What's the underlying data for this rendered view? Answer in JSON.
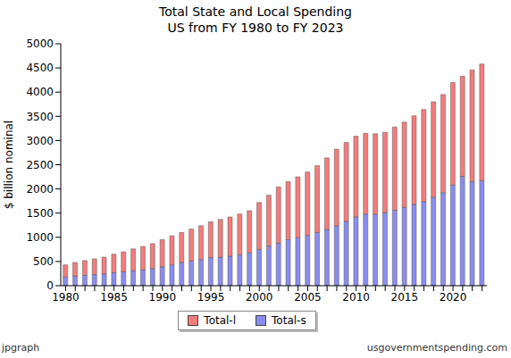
{
  "chart_data": {
    "type": "bar",
    "title": "Total State and Local Spending",
    "subtitle": "US from FY 1980 to FY 2023",
    "y_label": "$ billion nominal",
    "annotations": [
      "jpgraph",
      "usgovernmentspending.com"
    ],
    "categories": [
      "1980",
      null,
      null,
      null,
      null,
      "1985",
      null,
      null,
      null,
      null,
      "1990",
      null,
      null,
      null,
      null,
      "1995",
      null,
      null,
      null,
      null,
      "2000",
      null,
      null,
      null,
      null,
      "2005",
      null,
      null,
      null,
      null,
      "2010",
      null,
      null,
      null,
      null,
      "2015",
      null,
      null,
      null,
      null,
      "2020",
      null,
      null,
      null
    ],
    "series": [
      {
        "name": "Total-l",
        "color": "#f47c7c",
        "values": [
          250,
          280,
          305,
          325,
          345,
          380,
          410,
          450,
          480,
          515,
          560,
          600,
          620,
          660,
          700,
          740,
          780,
          810,
          840,
          870,
          970,
          1050,
          1160,
          1200,
          1260,
          1310,
          1380,
          1480,
          1580,
          1630,
          1670,
          1670,
          1660,
          1660,
          1720,
          1760,
          1830,
          1900,
          1970,
          2030,
          2120,
          2070,
          2310,
          2410
        ]
      },
      {
        "name": "Total-s",
        "color": "#8a8cf0",
        "values": [
          180,
          200,
          215,
          230,
          245,
          270,
          290,
          310,
          330,
          355,
          390,
          430,
          480,
          510,
          540,
          580,
          590,
          610,
          640,
          680,
          750,
          820,
          880,
          950,
          990,
          1040,
          1100,
          1160,
          1240,
          1330,
          1420,
          1480,
          1480,
          1510,
          1560,
          1620,
          1680,
          1740,
          1830,
          1920,
          2080,
          2260,
          2150,
          2170
        ]
      }
    ],
    "ylim": [
      0,
      5000
    ],
    "yticks": [
      0,
      500,
      1000,
      1500,
      2000,
      2500,
      3000,
      3500,
      4000,
      4500,
      5000
    ],
    "stacked": true,
    "grid": false,
    "legend": "bottom"
  }
}
